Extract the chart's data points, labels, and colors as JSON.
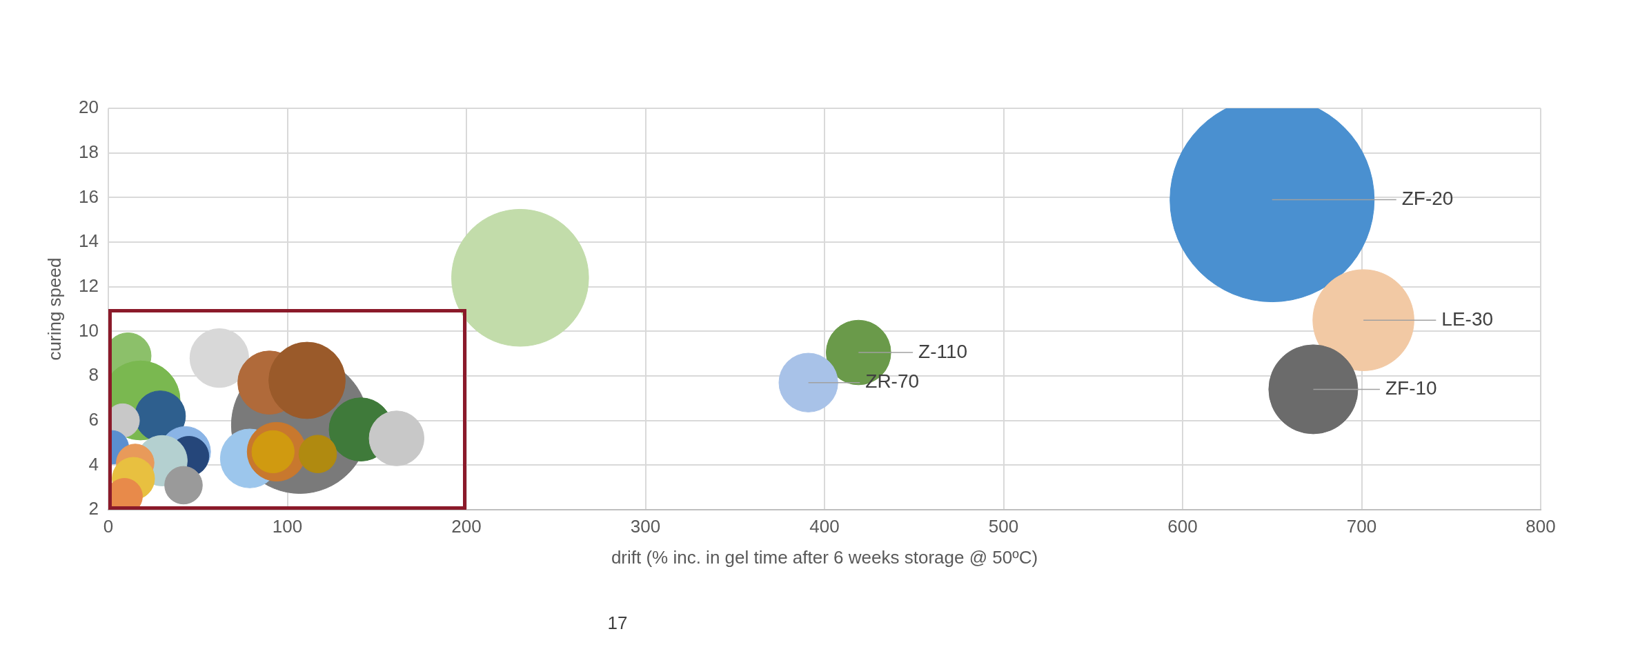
{
  "chart_data": {
    "type": "bubble",
    "xlabel": "drift (% inc. in gel time after 6 weeks storage @ 50ºC)",
    "ylabel": "curing speed",
    "xlim": [
      0,
      800
    ],
    "xticks": [
      0,
      100,
      200,
      300,
      400,
      500,
      600,
      700,
      800
    ],
    "ylim": [
      2,
      20
    ],
    "yticks": [
      2,
      4,
      6,
      8,
      10,
      12,
      14,
      16,
      18,
      20
    ],
    "grid": true,
    "legend": false,
    "x": [
      650,
      701,
      673,
      419,
      391,
      230,
      107,
      11,
      62,
      18,
      29,
      90,
      111,
      141,
      161,
      8,
      2,
      43,
      45,
      30,
      15,
      14,
      9,
      42,
      79,
      94,
      92,
      117
    ],
    "values": [
      15.9,
      10.5,
      7.4,
      9.05,
      7.7,
      12.4,
      5.8,
      8.9,
      8.8,
      6.9,
      6.2,
      7.7,
      7.8,
      5.6,
      5.2,
      6.0,
      4.8,
      4.6,
      4.4,
      4.2,
      4.1,
      3.4,
      2.6,
      3.1,
      4.3,
      4.6,
      4.6,
      4.5
    ],
    "sizes": [
      1,
      0.245,
      0.19,
      0.1,
      0.083,
      0.45,
      0.45,
      0.051,
      0.083,
      0.15,
      0.061,
      0.096,
      0.14,
      0.096,
      0.072,
      0.027,
      0.027,
      0.061,
      0.038,
      0.061,
      0.034,
      0.043,
      0.031,
      0.034,
      0.083,
      0.083,
      0.043,
      0.034
    ],
    "colors": [
      "#4a90d0",
      "#f2c9a4",
      "#6b6b6b",
      "#6a9a4a",
      "#a8c2e8",
      "#c2dcaa",
      "#7a7a7a",
      "#8cc06a",
      "#d8d8d8",
      "#7ab850",
      "#2e5f8e",
      "#b06a3a",
      "#9a5a2a",
      "#3f7a3a",
      "#c8c8c8",
      "#c8c8c8",
      "#5a8fd0",
      "#8ab4e6",
      "#25467a",
      "#b4d0d0",
      "#e89a5a",
      "#e8c040",
      "#e88a4a",
      "#9a9a9a",
      "#9cc6ec",
      "#c8782e",
      "#d09a10",
      "#b08a10"
    ],
    "annotations": [
      {
        "text": "ZF-20",
        "x": 650,
        "y": 15.9
      },
      {
        "text": "LE-30",
        "x": 701,
        "y": 10.5
      },
      {
        "text": "ZF-10",
        "x": 673,
        "y": 7.4
      },
      {
        "text": "Z-110",
        "x": 419,
        "y": 9.05
      },
      {
        "text": "ZR-70",
        "x": 391,
        "y": 7.7
      },
      "17"
    ]
  }
}
